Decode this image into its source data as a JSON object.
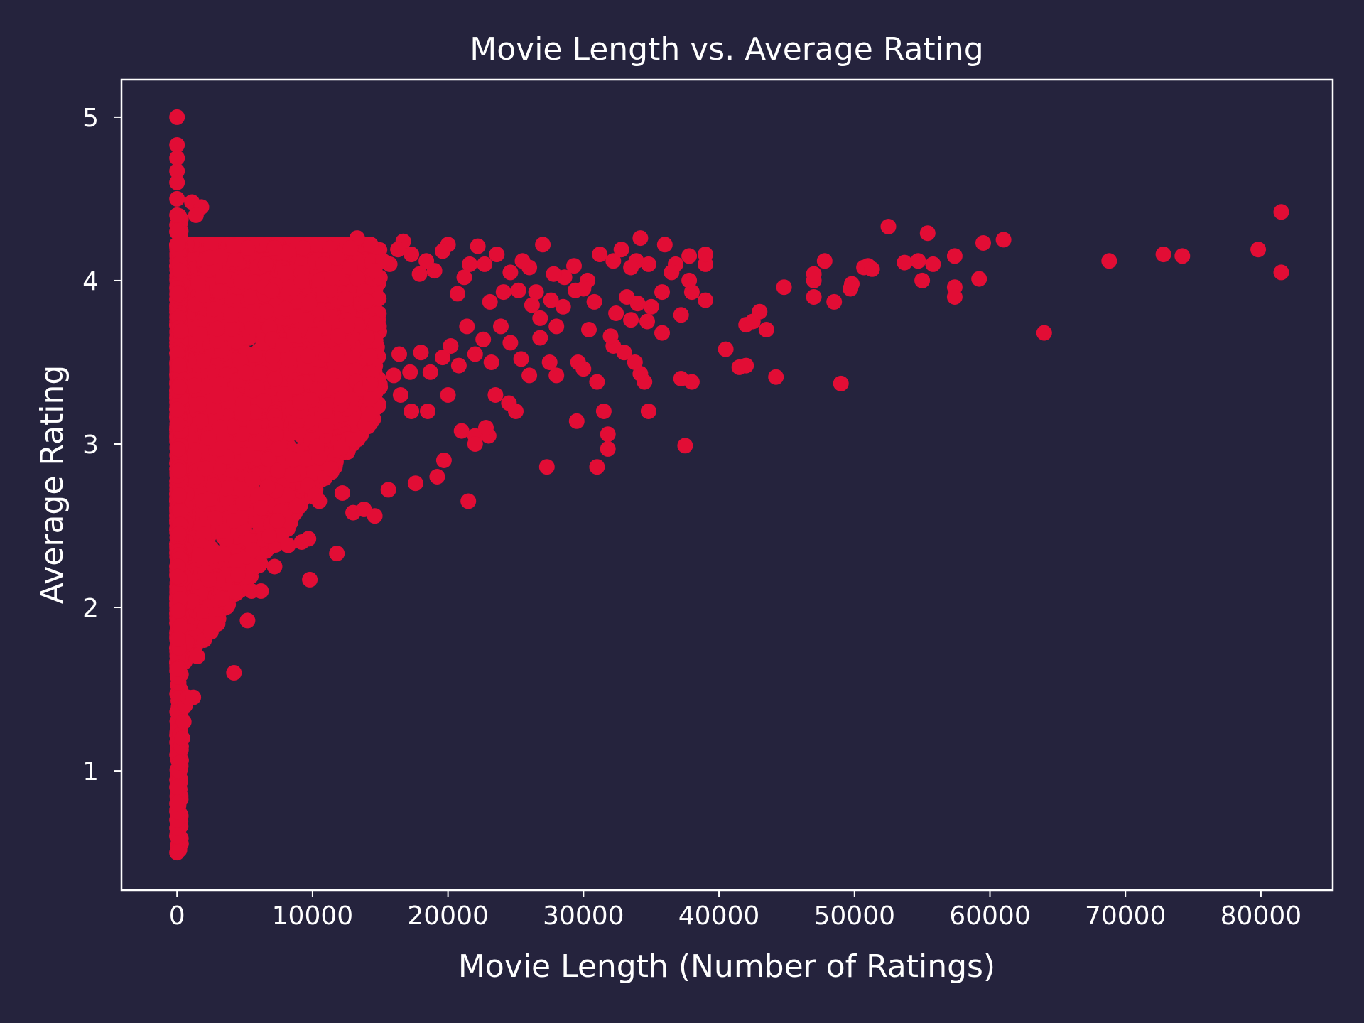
{
  "theme": {
    "background": "#25233d",
    "frame": "#ffffff",
    "text": "#ffffff",
    "marker": "#e20d35"
  },
  "chart_data": {
    "type": "scatter",
    "title": "Movie Length vs. Average Rating",
    "xlabel": "Movie Length (Number of Ratings)",
    "ylabel": "Average Rating",
    "xlim": [
      -4100,
      85300
    ],
    "ylim": [
      0.27,
      5.23
    ],
    "xticks": [
      0,
      10000,
      20000,
      30000,
      40000,
      50000,
      60000,
      70000,
      80000
    ],
    "yticks": [
      1,
      2,
      3,
      4,
      5
    ],
    "grid": false,
    "legend": "none",
    "points": [
      [
        0,
        5.0
      ],
      [
        0,
        4.83
      ],
      [
        0,
        4.75
      ],
      [
        0,
        4.67
      ],
      [
        0,
        4.6
      ],
      [
        0,
        4.5
      ],
      [
        0,
        4.4
      ],
      [
        0,
        4.3
      ],
      [
        0,
        0.5
      ],
      [
        0,
        0.6
      ],
      [
        0,
        0.65
      ],
      [
        0,
        0.7
      ],
      [
        0,
        0.75
      ],
      [
        0,
        0.8
      ],
      [
        0,
        0.9
      ],
      [
        100,
        1.0
      ],
      [
        200,
        1.05
      ],
      [
        300,
        1.15
      ],
      [
        400,
        1.2
      ],
      [
        500,
        1.3
      ],
      [
        600,
        1.4
      ],
      [
        800,
        1.45
      ],
      [
        1200,
        1.45
      ],
      [
        1500,
        1.7
      ],
      [
        2000,
        1.8
      ],
      [
        2500,
        1.85
      ],
      [
        3000,
        1.9
      ],
      [
        4200,
        1.6
      ],
      [
        5200,
        1.92
      ],
      [
        1100,
        4.48
      ],
      [
        1800,
        4.45
      ],
      [
        1400,
        4.4
      ],
      [
        4500,
        2.2
      ],
      [
        5500,
        2.1
      ],
      [
        6200,
        2.1
      ],
      [
        7200,
        2.25
      ],
      [
        8200,
        2.38
      ],
      [
        9200,
        2.4
      ],
      [
        9700,
        2.42
      ],
      [
        9800,
        2.17
      ],
      [
        11800,
        2.33
      ],
      [
        10500,
        2.65
      ],
      [
        12200,
        2.7
      ],
      [
        13000,
        2.58
      ],
      [
        13800,
        2.6
      ],
      [
        14600,
        2.56
      ],
      [
        15600,
        2.72
      ],
      [
        17600,
        2.76
      ],
      [
        19200,
        2.8
      ],
      [
        19700,
        2.9
      ],
      [
        21500,
        2.65
      ],
      [
        27300,
        2.86
      ],
      [
        31000,
        2.86
      ],
      [
        16500,
        3.3
      ],
      [
        17300,
        3.2
      ],
      [
        18500,
        3.2
      ],
      [
        20000,
        3.3
      ],
      [
        21000,
        3.08
      ],
      [
        22000,
        3.05
      ],
      [
        23000,
        3.05
      ],
      [
        23500,
        3.3
      ],
      [
        24500,
        3.25
      ],
      [
        25000,
        3.2
      ],
      [
        26000,
        3.42
      ],
      [
        22000,
        3.0
      ],
      [
        22800,
        3.1
      ],
      [
        29500,
        3.14
      ],
      [
        31000,
        3.38
      ],
      [
        31500,
        3.2
      ],
      [
        31800,
        3.06
      ],
      [
        31800,
        2.97
      ],
      [
        34500,
        3.38
      ],
      [
        34800,
        3.2
      ],
      [
        37500,
        2.99
      ],
      [
        38000,
        3.38
      ],
      [
        37200,
        3.4
      ],
      [
        34200,
        3.43
      ],
      [
        33800,
        3.5
      ],
      [
        33000,
        3.56
      ],
      [
        32200,
        3.6
      ],
      [
        32000,
        3.66
      ],
      [
        29600,
        3.5
      ],
      [
        28000,
        3.42
      ],
      [
        27500,
        3.5
      ],
      [
        30000,
        3.46
      ],
      [
        30400,
        3.7
      ],
      [
        28000,
        3.72
      ],
      [
        26800,
        3.65
      ],
      [
        35800,
        3.68
      ],
      [
        34700,
        3.75
      ],
      [
        33500,
        3.76
      ],
      [
        37200,
        3.79
      ],
      [
        38000,
        3.93
      ],
      [
        39000,
        3.88
      ],
      [
        40500,
        3.58
      ],
      [
        41500,
        3.47
      ],
      [
        42000,
        3.48
      ],
      [
        42000,
        3.73
      ],
      [
        42500,
        3.75
      ],
      [
        43000,
        3.81
      ],
      [
        43500,
        3.7
      ],
      [
        44200,
        3.41
      ],
      [
        44800,
        3.96
      ],
      [
        47000,
        3.9
      ],
      [
        47000,
        4.0
      ],
      [
        47000,
        4.04
      ],
      [
        47800,
        4.12
      ],
      [
        48500,
        3.87
      ],
      [
        49000,
        3.37
      ],
      [
        49700,
        3.95
      ],
      [
        49800,
        3.98
      ],
      [
        50700,
        4.08
      ],
      [
        51000,
        4.09
      ],
      [
        51300,
        4.07
      ],
      [
        52500,
        4.33
      ],
      [
        53700,
        4.11
      ],
      [
        54700,
        4.12
      ],
      [
        55000,
        4.0
      ],
      [
        55400,
        4.29
      ],
      [
        55800,
        4.1
      ],
      [
        57400,
        4.15
      ],
      [
        57400,
        3.96
      ],
      [
        57400,
        3.9
      ],
      [
        59200,
        4.01
      ],
      [
        59500,
        4.23
      ],
      [
        61000,
        4.25
      ],
      [
        64000,
        3.68
      ],
      [
        68800,
        4.12
      ],
      [
        72800,
        4.16
      ],
      [
        74200,
        4.15
      ],
      [
        79800,
        4.19
      ],
      [
        81500,
        4.42
      ],
      [
        81500,
        4.05
      ],
      [
        39000,
        4.1
      ],
      [
        39000,
        4.16
      ],
      [
        37800,
        4.15
      ],
      [
        37800,
        4.0
      ],
      [
        36800,
        4.1
      ],
      [
        36500,
        4.05
      ],
      [
        36000,
        4.22
      ],
      [
        35800,
        3.93
      ],
      [
        34800,
        4.1
      ],
      [
        34200,
        4.26
      ],
      [
        33900,
        4.12
      ],
      [
        33500,
        4.08
      ],
      [
        32800,
        4.19
      ],
      [
        32200,
        4.12
      ],
      [
        31200,
        4.16
      ],
      [
        30300,
        4.0
      ],
      [
        30000,
        3.95
      ],
      [
        29300,
        4.09
      ],
      [
        28600,
        4.02
      ],
      [
        27800,
        4.04
      ],
      [
        27000,
        4.22
      ],
      [
        26500,
        3.93
      ],
      [
        26000,
        4.08
      ],
      [
        25500,
        4.12
      ],
      [
        25200,
        3.94
      ],
      [
        24600,
        4.05
      ],
      [
        24100,
        3.93
      ],
      [
        23600,
        4.16
      ],
      [
        23100,
        3.87
      ],
      [
        22700,
        4.1
      ],
      [
        22200,
        4.21
      ],
      [
        21600,
        4.1
      ],
      [
        21200,
        4.02
      ],
      [
        20700,
        3.92
      ],
      [
        20000,
        4.22
      ],
      [
        19600,
        4.18
      ],
      [
        19000,
        4.06
      ],
      [
        18400,
        4.12
      ],
      [
        17900,
        4.04
      ],
      [
        17300,
        4.16
      ],
      [
        16700,
        4.24
      ],
      [
        16300,
        4.19
      ],
      [
        15700,
        4.1
      ],
      [
        15200,
        4.12
      ],
      [
        14600,
        4.06
      ],
      [
        13300,
        4.26
      ],
      [
        12800,
        4.2
      ],
      [
        11800,
        4.14
      ],
      [
        10800,
        4.1
      ],
      [
        9300,
        4.2
      ],
      [
        8000,
        4.17
      ],
      [
        7200,
        4.2
      ],
      [
        5200,
        4.2
      ],
      [
        4200,
        4.21
      ],
      [
        3200,
        4.15
      ],
      [
        2400,
        4.14
      ],
      [
        16000,
        3.42
      ],
      [
        16400,
        3.55
      ],
      [
        17200,
        3.44
      ],
      [
        18000,
        3.56
      ],
      [
        18700,
        3.44
      ],
      [
        19600,
        3.53
      ],
      [
        20200,
        3.6
      ],
      [
        20800,
        3.48
      ],
      [
        21400,
        3.72
      ],
      [
        22000,
        3.55
      ],
      [
        22600,
        3.64
      ],
      [
        23200,
        3.5
      ],
      [
        23900,
        3.72
      ],
      [
        24600,
        3.62
      ],
      [
        25400,
        3.52
      ],
      [
        26200,
        3.85
      ],
      [
        26800,
        3.77
      ],
      [
        27600,
        3.88
      ],
      [
        28500,
        3.84
      ],
      [
        29400,
        3.94
      ],
      [
        30800,
        3.87
      ],
      [
        32400,
        3.8
      ],
      [
        33200,
        3.9
      ],
      [
        34000,
        3.86
      ],
      [
        35000,
        3.84
      ]
    ]
  }
}
